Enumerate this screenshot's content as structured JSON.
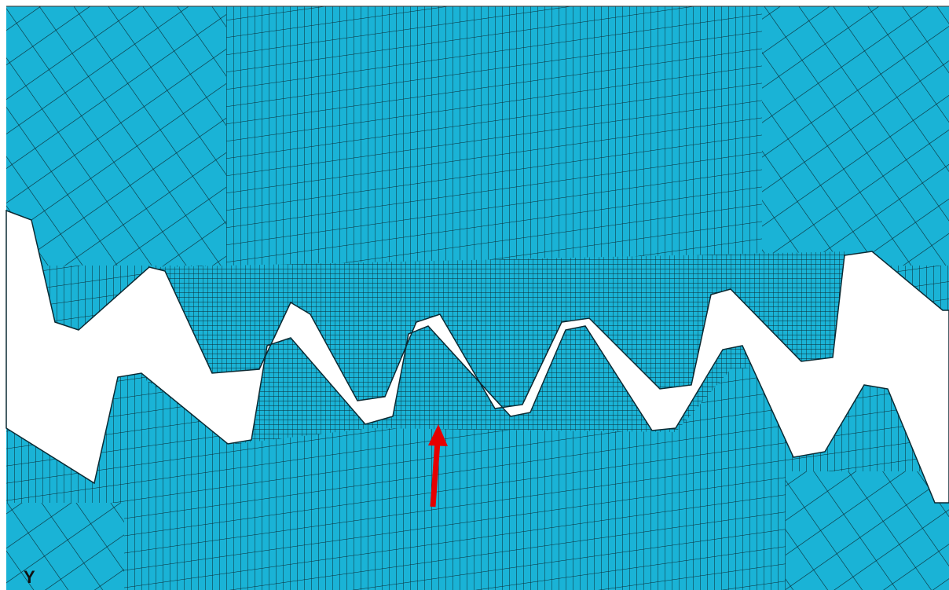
{
  "triad": {
    "axis_label": "Y"
  }
}
